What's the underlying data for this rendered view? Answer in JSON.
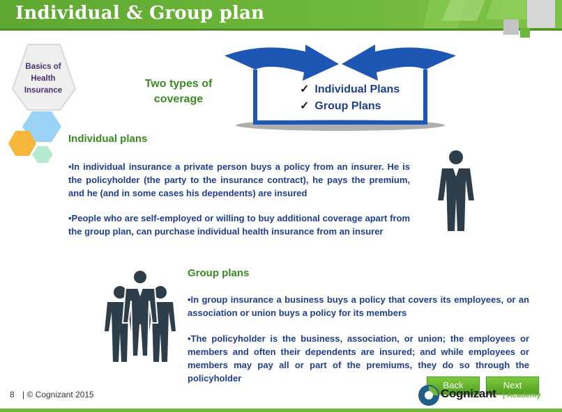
{
  "header": {
    "title": "Individual & Group plan"
  },
  "badge": {
    "line1": "Basics of",
    "line2": "Health",
    "line3": "Insurance"
  },
  "coverage": {
    "label_line1": "Two types of",
    "label_line2": "coverage",
    "items": [
      "Individual Plans",
      "Group Plans"
    ],
    "check_glyph": "✓"
  },
  "individual": {
    "heading": "Individual plans",
    "para1": "•In individual insurance a private person buys a policy from an insurer. He is the policyholder (the party to the insurance contract), he pays the premium, and he (and in some cases his dependents) are insured",
    "para2": "•People who are self-employed or willing to buy additional coverage apart from the group plan, can purchase individual health insurance from an insurer"
  },
  "group": {
    "heading": "Group plans",
    "para1": "•In group insurance a business buys a policy that covers its employees, or an association or union buys a policy for its members",
    "para2": "•The policyholder is the business, association, or union; the employees or members and often their dependents are insured; and while employees or members may pay all or part of the premiums, they do so through the policyholder"
  },
  "nav": {
    "back_label": "Back",
    "next_label": "Next"
  },
  "footer": {
    "page_number": "8",
    "copyright": "| © Cognizant 2015"
  },
  "logo": {
    "name": "Cognizant",
    "sub": "| Academy"
  },
  "icons": {
    "single_person": "person-icon",
    "group_people": "group-people-icon",
    "arrows": "curved-arrows-icon"
  },
  "colors": {
    "accent_green": "#6fb83b",
    "text_blue": "#1f3e8c",
    "heading_green": "#3a8a22",
    "arrow_blue": "#1e56b4"
  }
}
